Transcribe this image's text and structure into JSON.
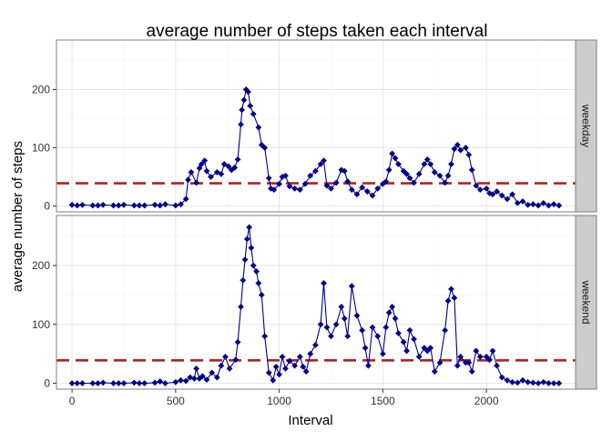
{
  "chart_data": {
    "type": "line",
    "title": "average number of steps taken each interval",
    "xlabel": "Interval",
    "ylabel": "average number of steps",
    "xlim": [
      -75,
      2430
    ],
    "x_ticks": [
      0,
      500,
      1000,
      1500,
      2000
    ],
    "x_tick_labels": [
      "0",
      "500",
      "1000",
      "1500",
      "2000"
    ],
    "grid": true,
    "legend": "none",
    "colors": {
      "line": "#00008B",
      "marker": "#00008B",
      "reference_line": "#B22222",
      "strip_bg": "#CCCCCC",
      "grid_major": "#E6E6E6",
      "grid_minor": "#F3F3F3",
      "panel_border": "#7F7F7F"
    },
    "panels": [
      {
        "strip_label": "weekday",
        "ylim": [
          -10,
          285
        ],
        "y_ticks": [
          0,
          100,
          200
        ],
        "y_tick_labels": [
          "0",
          "100",
          "200"
        ],
        "reference_y": 39,
        "points": [
          [
            0,
            2
          ],
          [
            25,
            1
          ],
          [
            50,
            2
          ],
          [
            100,
            1
          ],
          [
            125,
            1
          ],
          [
            150,
            2
          ],
          [
            200,
            1
          ],
          [
            225,
            1
          ],
          [
            250,
            2
          ],
          [
            300,
            1
          ],
          [
            325,
            1
          ],
          [
            350,
            1
          ],
          [
            400,
            2
          ],
          [
            425,
            1
          ],
          [
            450,
            3
          ],
          [
            500,
            1
          ],
          [
            525,
            3
          ],
          [
            550,
            12
          ],
          [
            560,
            45
          ],
          [
            575,
            58
          ],
          [
            600,
            40
          ],
          [
            615,
            65
          ],
          [
            625,
            72
          ],
          [
            640,
            78
          ],
          [
            650,
            60
          ],
          [
            670,
            50
          ],
          [
            700,
            58
          ],
          [
            720,
            55
          ],
          [
            735,
            72
          ],
          [
            755,
            68
          ],
          [
            770,
            62
          ],
          [
            785,
            66
          ],
          [
            800,
            80
          ],
          [
            815,
            140
          ],
          [
            820,
            165
          ],
          [
            830,
            182
          ],
          [
            840,
            200
          ],
          [
            850,
            196
          ],
          [
            860,
            172
          ],
          [
            875,
            158
          ],
          [
            900,
            135
          ],
          [
            915,
            105
          ],
          [
            930,
            100
          ],
          [
            950,
            48
          ],
          [
            960,
            30
          ],
          [
            975,
            28
          ],
          [
            1000,
            38
          ],
          [
            1015,
            50
          ],
          [
            1030,
            52
          ],
          [
            1050,
            34
          ],
          [
            1075,
            30
          ],
          [
            1100,
            28
          ],
          [
            1125,
            38
          ],
          [
            1150,
            52
          ],
          [
            1175,
            60
          ],
          [
            1200,
            72
          ],
          [
            1215,
            78
          ],
          [
            1230,
            35
          ],
          [
            1250,
            30
          ],
          [
            1275,
            40
          ],
          [
            1300,
            62
          ],
          [
            1315,
            60
          ],
          [
            1330,
            42
          ],
          [
            1350,
            28
          ],
          [
            1375,
            20
          ],
          [
            1400,
            32
          ],
          [
            1425,
            25
          ],
          [
            1450,
            18
          ],
          [
            1475,
            30
          ],
          [
            1500,
            38
          ],
          [
            1515,
            42
          ],
          [
            1530,
            62
          ],
          [
            1545,
            90
          ],
          [
            1560,
            82
          ],
          [
            1575,
            72
          ],
          [
            1600,
            60
          ],
          [
            1615,
            55
          ],
          [
            1630,
            48
          ],
          [
            1650,
            40
          ],
          [
            1675,
            55
          ],
          [
            1700,
            72
          ],
          [
            1715,
            80
          ],
          [
            1730,
            72
          ],
          [
            1750,
            58
          ],
          [
            1775,
            52
          ],
          [
            1800,
            40
          ],
          [
            1815,
            52
          ],
          [
            1830,
            72
          ],
          [
            1845,
            98
          ],
          [
            1860,
            105
          ],
          [
            1875,
            96
          ],
          [
            1900,
            100
          ],
          [
            1915,
            88
          ],
          [
            1930,
            62
          ],
          [
            1950,
            35
          ],
          [
            1970,
            28
          ],
          [
            2000,
            30
          ],
          [
            2015,
            22
          ],
          [
            2030,
            20
          ],
          [
            2050,
            25
          ],
          [
            2075,
            18
          ],
          [
            2100,
            12
          ],
          [
            2125,
            20
          ],
          [
            2150,
            5
          ],
          [
            2175,
            8
          ],
          [
            2200,
            2
          ],
          [
            2225,
            3
          ],
          [
            2250,
            1
          ],
          [
            2275,
            5
          ],
          [
            2300,
            1
          ],
          [
            2325,
            3
          ],
          [
            2350,
            1
          ]
        ]
      },
      {
        "strip_label": "weekend",
        "ylim": [
          -10,
          285
        ],
        "y_ticks": [
          0,
          100,
          200
        ],
        "y_tick_labels": [
          "0",
          "100",
          "200"
        ],
        "reference_y": 39,
        "points": [
          [
            0,
            0
          ],
          [
            25,
            0
          ],
          [
            50,
            0
          ],
          [
            100,
            0
          ],
          [
            125,
            0
          ],
          [
            150,
            1
          ],
          [
            200,
            0
          ],
          [
            225,
            0
          ],
          [
            250,
            0
          ],
          [
            300,
            1
          ],
          [
            325,
            0
          ],
          [
            350,
            0
          ],
          [
            400,
            1
          ],
          [
            425,
            3
          ],
          [
            450,
            0
          ],
          [
            500,
            2
          ],
          [
            525,
            5
          ],
          [
            550,
            4
          ],
          [
            570,
            10
          ],
          [
            590,
            8
          ],
          [
            600,
            25
          ],
          [
            615,
            8
          ],
          [
            630,
            12
          ],
          [
            650,
            6
          ],
          [
            675,
            18
          ],
          [
            700,
            10
          ],
          [
            720,
            30
          ],
          [
            740,
            45
          ],
          [
            760,
            25
          ],
          [
            790,
            40
          ],
          [
            800,
            70
          ],
          [
            815,
            130
          ],
          [
            825,
            175
          ],
          [
            835,
            210
          ],
          [
            845,
            245
          ],
          [
            855,
            265
          ],
          [
            865,
            230
          ],
          [
            875,
            200
          ],
          [
            890,
            190
          ],
          [
            900,
            170
          ],
          [
            915,
            150
          ],
          [
            930,
            80
          ],
          [
            950,
            18
          ],
          [
            970,
            5
          ],
          [
            985,
            28
          ],
          [
            1000,
            15
          ],
          [
            1015,
            45
          ],
          [
            1030,
            25
          ],
          [
            1050,
            38
          ],
          [
            1075,
            30
          ],
          [
            1100,
            45
          ],
          [
            1115,
            28
          ],
          [
            1130,
            20
          ],
          [
            1150,
            50
          ],
          [
            1175,
            65
          ],
          [
            1200,
            100
          ],
          [
            1215,
            170
          ],
          [
            1230,
            95
          ],
          [
            1250,
            80
          ],
          [
            1275,
            100
          ],
          [
            1300,
            130
          ],
          [
            1315,
            110
          ],
          [
            1330,
            80
          ],
          [
            1350,
            165
          ],
          [
            1375,
            115
          ],
          [
            1400,
            90
          ],
          [
            1415,
            60
          ],
          [
            1430,
            30
          ],
          [
            1450,
            95
          ],
          [
            1475,
            80
          ],
          [
            1500,
            50
          ],
          [
            1515,
            95
          ],
          [
            1530,
            120
          ],
          [
            1545,
            130
          ],
          [
            1560,
            110
          ],
          [
            1575,
            85
          ],
          [
            1600,
            70
          ],
          [
            1615,
            55
          ],
          [
            1630,
            90
          ],
          [
            1650,
            75
          ],
          [
            1675,
            45
          ],
          [
            1700,
            60
          ],
          [
            1715,
            55
          ],
          [
            1730,
            60
          ],
          [
            1750,
            20
          ],
          [
            1775,
            35
          ],
          [
            1800,
            90
          ],
          [
            1815,
            140
          ],
          [
            1830,
            160
          ],
          [
            1845,
            145
          ],
          [
            1860,
            30
          ],
          [
            1875,
            45
          ],
          [
            1900,
            35
          ],
          [
            1915,
            35
          ],
          [
            1930,
            20
          ],
          [
            1950,
            55
          ],
          [
            1970,
            45
          ],
          [
            2000,
            45
          ],
          [
            2015,
            40
          ],
          [
            2030,
            55
          ],
          [
            2050,
            30
          ],
          [
            2075,
            10
          ],
          [
            2100,
            5
          ],
          [
            2125,
            2
          ],
          [
            2150,
            1
          ],
          [
            2175,
            5
          ],
          [
            2200,
            2
          ],
          [
            2225,
            1
          ],
          [
            2250,
            0
          ],
          [
            2275,
            2
          ],
          [
            2300,
            0
          ],
          [
            2325,
            0
          ],
          [
            2350,
            0
          ]
        ]
      }
    ]
  }
}
